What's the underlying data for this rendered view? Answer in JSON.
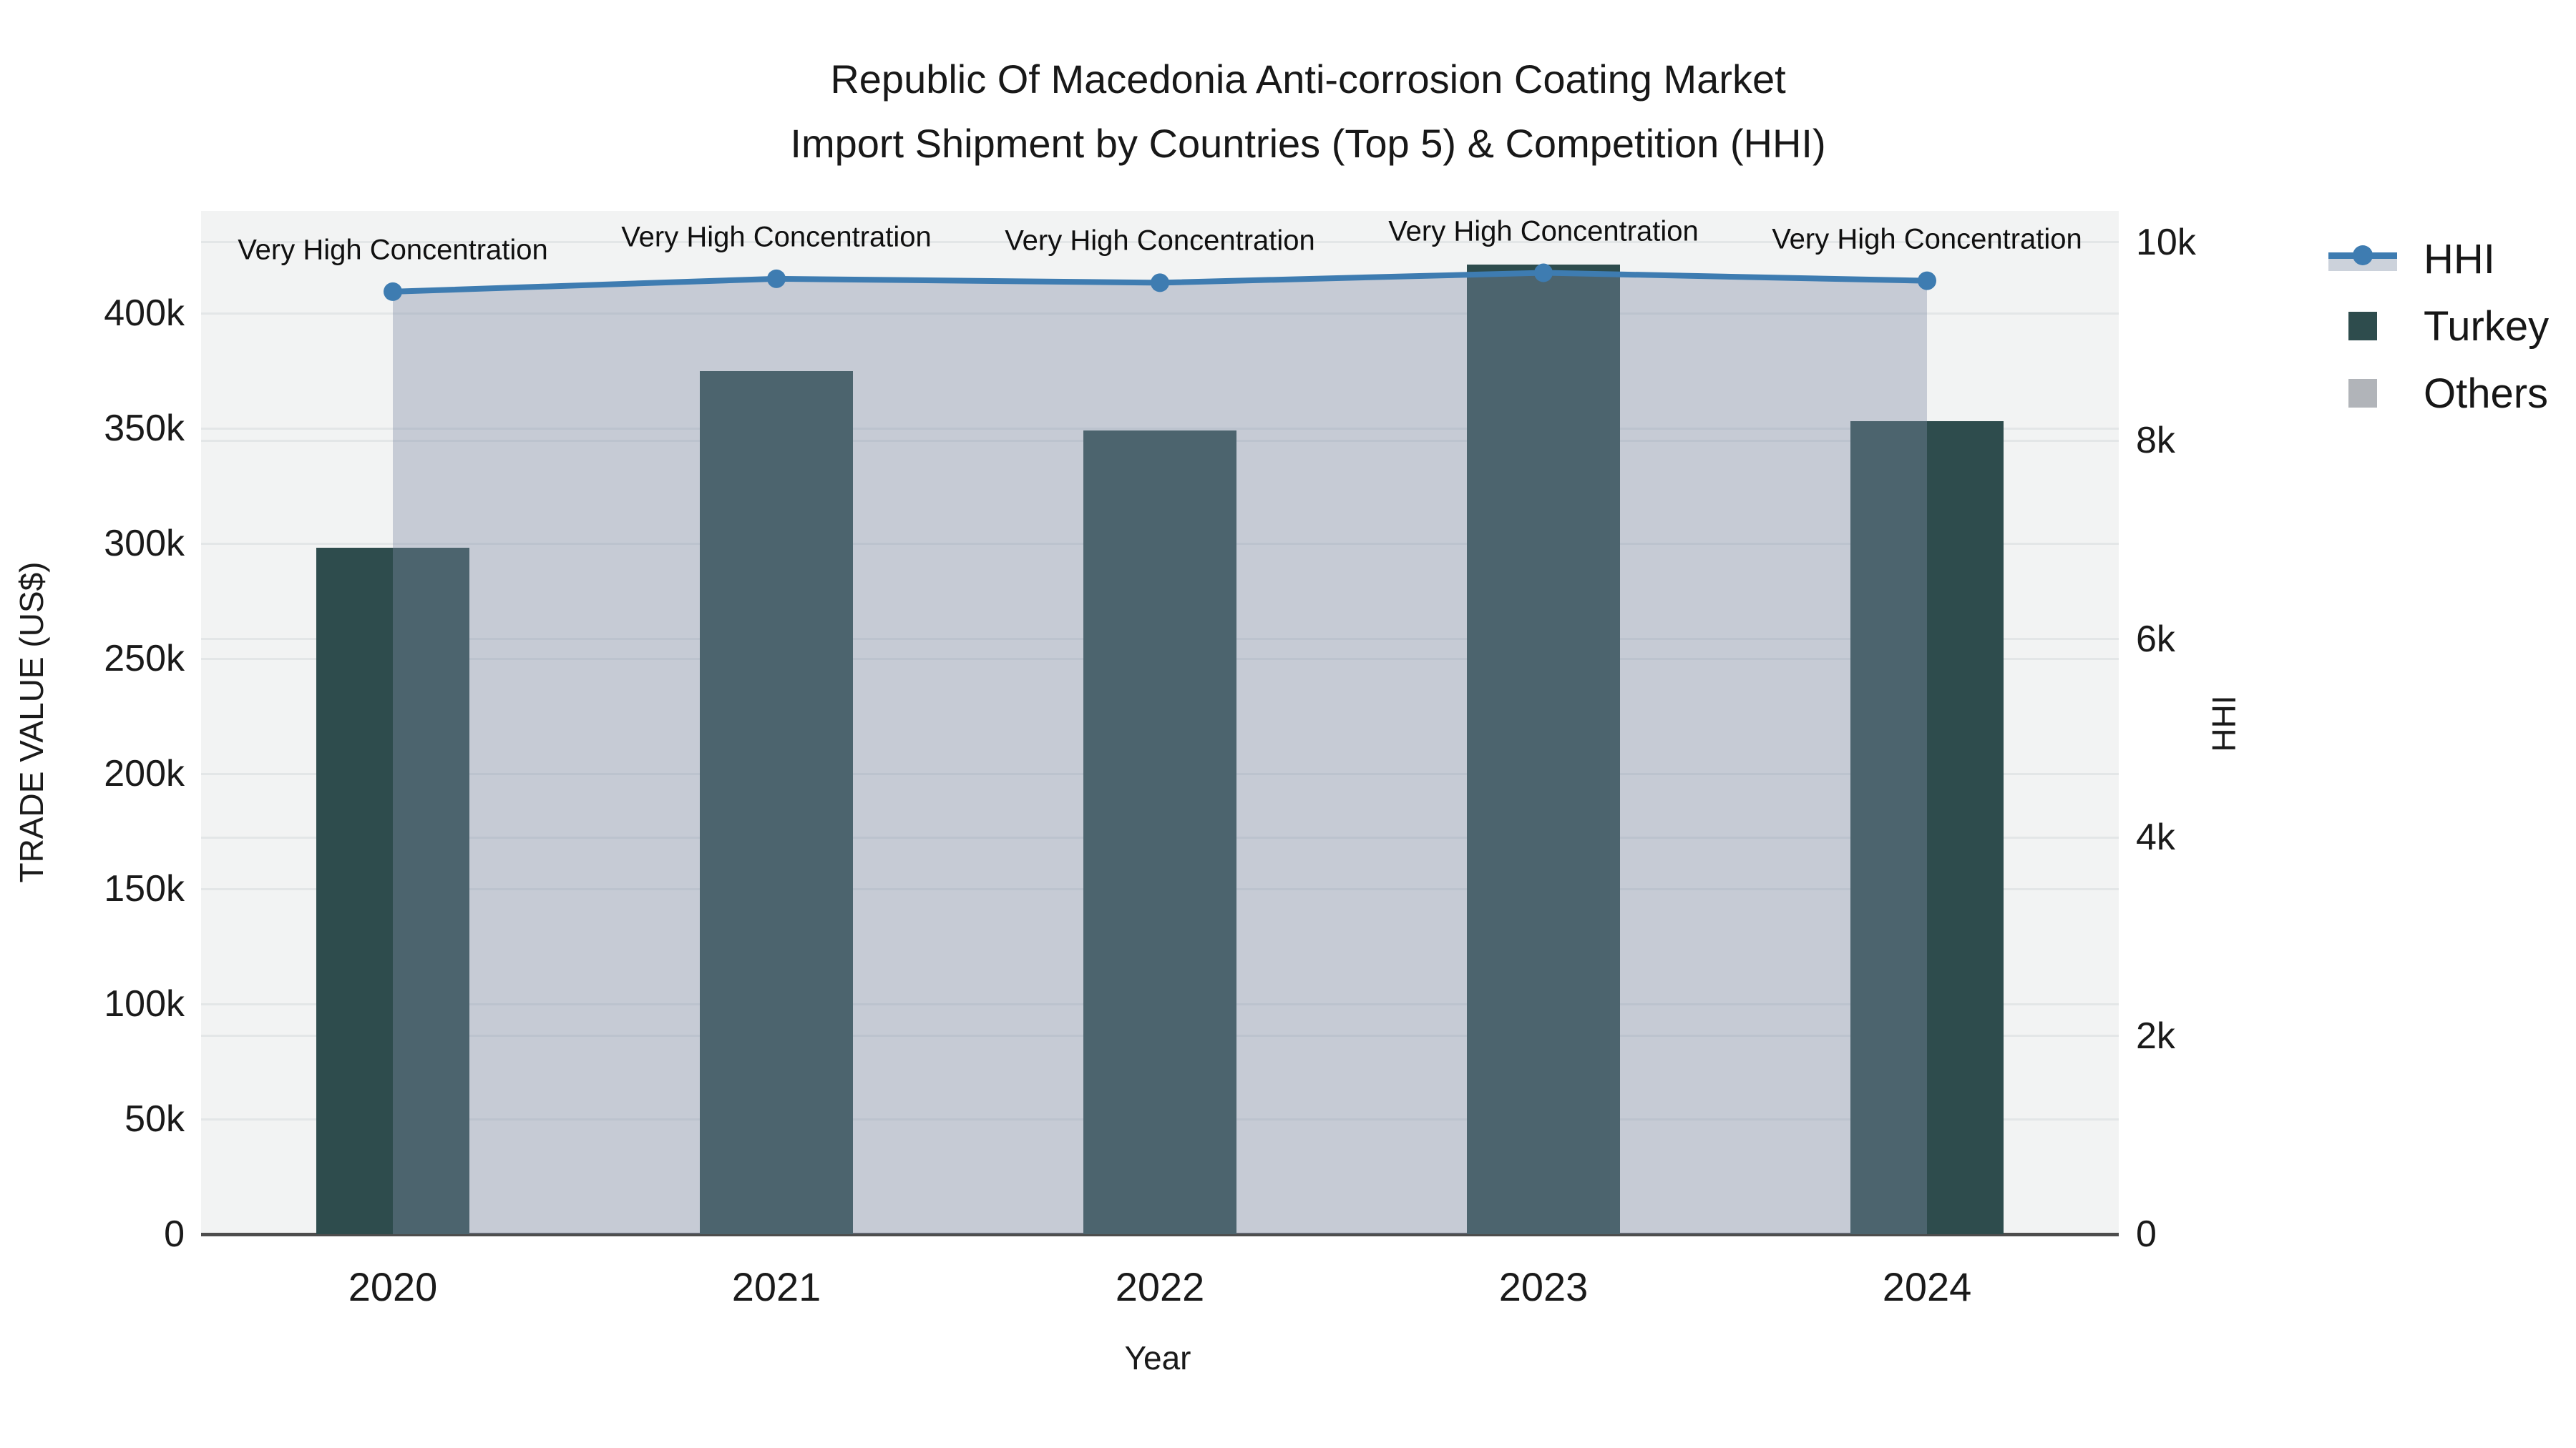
{
  "title": {
    "line1": "Republic Of Macedonia Anti-corrosion Coating Market",
    "line2": "Import Shipment by Countries (Top 5) & Competition (HHI)"
  },
  "colors": {
    "plot_bg": "#f2f3f3",
    "grid": "#e3e6e7",
    "bar_turkey": "#2e4c4d",
    "hhi_line": "#3e7cb1",
    "hhi_area_fill": "#7e8ca6",
    "hhi_area_opacity": 0.38,
    "others_swatch": "#b1b4b9",
    "axis_line": "#4d4d4d",
    "text": "#161616"
  },
  "legend": {
    "items": [
      {
        "label": "HHI",
        "marker": "line-with-area"
      },
      {
        "label": "Turkey",
        "marker": "square"
      },
      {
        "label": "Others",
        "marker": "square"
      }
    ]
  },
  "chart_data": {
    "type": "bar+line",
    "title": "Republic Of Macedonia Anti-corrosion Coating Market — Import Shipment by Countries (Top 5) & Competition (HHI)",
    "categories": [
      "2020",
      "2021",
      "2022",
      "2023",
      "2024"
    ],
    "series": [
      {
        "name": "Turkey",
        "type": "bar",
        "yaxis": "left",
        "values": [
          298000,
          375000,
          349000,
          421000,
          353000
        ]
      },
      {
        "name": "Others",
        "type": "bar",
        "yaxis": "left",
        "values": [
          null,
          null,
          null,
          null,
          null
        ]
      },
      {
        "name": "HHI",
        "type": "line",
        "yaxis": "right",
        "fill": "tozeroy",
        "values": [
          9500,
          9630,
          9590,
          9690,
          9610
        ]
      }
    ],
    "annotations": [
      "Very High Concentration",
      "Very High Concentration",
      "Very High Concentration",
      "Very High Concentration",
      "Very High Concentration"
    ],
    "xaxis": {
      "title": "Year",
      "ticks": [
        "2020",
        "2021",
        "2022",
        "2023",
        "2024"
      ]
    },
    "yaxis_left": {
      "title": "TRADE VALUE (US$)",
      "ticks": [
        {
          "label": "0",
          "value": 0
        },
        {
          "label": "50k",
          "value": 50000
        },
        {
          "label": "100k",
          "value": 100000
        },
        {
          "label": "150k",
          "value": 150000
        },
        {
          "label": "200k",
          "value": 200000
        },
        {
          "label": "250k",
          "value": 250000
        },
        {
          "label": "300k",
          "value": 300000
        },
        {
          "label": "350k",
          "value": 350000
        },
        {
          "label": "400k",
          "value": 400000
        }
      ],
      "range": [
        0,
        444000
      ],
      "grid": true
    },
    "yaxis_right": {
      "title": "HHI",
      "ticks": [
        {
          "label": "0",
          "value": 0
        },
        {
          "label": "2k",
          "value": 2000
        },
        {
          "label": "4k",
          "value": 4000
        },
        {
          "label": "6k",
          "value": 6000
        },
        {
          "label": "8k",
          "value": 8000
        },
        {
          "label": "10k",
          "value": 10000
        }
      ],
      "range": [
        0,
        10300
      ],
      "grid": true
    },
    "legend_position": "right"
  }
}
